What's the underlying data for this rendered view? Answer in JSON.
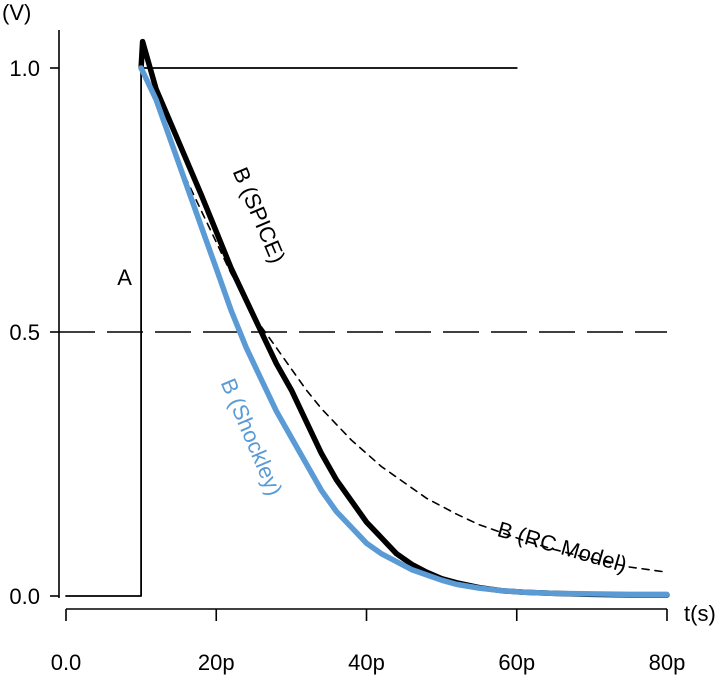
{
  "chart_data": {
    "type": "line",
    "title": "",
    "xlabel": "t(s)",
    "ylabel": "(V)",
    "xlim": [
      0,
      80
    ],
    "ylim": [
      0,
      1.0
    ],
    "x_unit_suffix": "p",
    "x_ticks": [
      {
        "value": 0,
        "label": "0.0"
      },
      {
        "value": 20,
        "label": "20p"
      },
      {
        "value": 40,
        "label": "40p"
      },
      {
        "value": 60,
        "label": "60p"
      },
      {
        "value": 80,
        "label": "80p"
      }
    ],
    "y_ticks": [
      {
        "value": 0.0,
        "label": "0.0"
      },
      {
        "value": 0.5,
        "label": "0.5"
      },
      {
        "value": 1.0,
        "label": "1.0"
      }
    ],
    "grid": false,
    "reference_lines": [
      {
        "y": 0.5,
        "style": "long-dash",
        "x_range": [
          0,
          80
        ]
      }
    ],
    "series": [
      {
        "name": "A",
        "color": "#000000",
        "style": "thin-solid",
        "x": [
          0,
          10,
          10,
          60
        ],
        "y": [
          0.0,
          0.0,
          1.0,
          1.0
        ]
      },
      {
        "name": "B (SPICE)",
        "color": "#000000",
        "style": "thick-solid",
        "x": [
          10,
          10.2,
          12,
          15,
          18,
          20,
          22,
          24,
          26,
          28,
          30,
          32,
          34,
          36,
          38,
          40,
          42,
          44,
          46,
          48,
          50,
          52,
          55,
          58,
          61,
          65,
          70,
          75,
          80
        ],
        "y": [
          1.0,
          1.05,
          0.96,
          0.86,
          0.76,
          0.69,
          0.62,
          0.56,
          0.5,
          0.44,
          0.39,
          0.33,
          0.27,
          0.22,
          0.18,
          0.14,
          0.11,
          0.08,
          0.06,
          0.045,
          0.033,
          0.025,
          0.016,
          0.01,
          0.007,
          0.005,
          0.003,
          0.002,
          0.002
        ]
      },
      {
        "name": "B (Shockley)",
        "color": "#5b9bd5",
        "style": "thick-solid",
        "x": [
          10,
          12,
          14,
          16,
          18,
          20,
          22,
          24,
          26,
          28,
          30,
          32,
          34,
          36,
          38,
          40,
          42,
          44,
          46,
          48,
          50,
          52,
          55,
          58,
          61,
          65,
          70,
          75,
          80
        ],
        "y": [
          1.0,
          0.94,
          0.86,
          0.78,
          0.7,
          0.62,
          0.54,
          0.47,
          0.41,
          0.35,
          0.3,
          0.25,
          0.2,
          0.16,
          0.13,
          0.1,
          0.08,
          0.065,
          0.05,
          0.04,
          0.03,
          0.022,
          0.015,
          0.01,
          0.007,
          0.005,
          0.004,
          0.003,
          0.003
        ]
      },
      {
        "name": "B (RC Model)",
        "color": "#000000",
        "style": "short-dash",
        "x": [
          10,
          12,
          14,
          16,
          18,
          20,
          22,
          24,
          26,
          28,
          30,
          32,
          34,
          36,
          38,
          40,
          42,
          44,
          46,
          48,
          50,
          52,
          55,
          58,
          61,
          65,
          70,
          75,
          80
        ],
        "y": [
          1.0,
          0.94,
          0.86,
          0.79,
          0.73,
          0.67,
          0.61,
          0.56,
          0.51,
          0.47,
          0.43,
          0.39,
          0.355,
          0.325,
          0.295,
          0.27,
          0.245,
          0.225,
          0.205,
          0.185,
          0.17,
          0.155,
          0.135,
          0.12,
          0.105,
          0.088,
          0.07,
          0.055,
          0.045
        ]
      }
    ],
    "annotations": [
      {
        "text": "A",
        "x": 7.8,
        "y": 0.6,
        "rotation": 0,
        "color": "#000000"
      },
      {
        "text": "B (SPICE)",
        "x": 25.5,
        "y": 0.72,
        "rotation": 67,
        "color": "#000000"
      },
      {
        "text": "B (Shockley)",
        "x": 24.5,
        "y": 0.3,
        "rotation": 67,
        "color": "#5b9bd5"
      },
      {
        "text": "B (RC Model)",
        "x": 66,
        "y": 0.09,
        "rotation": 16,
        "color": "#000000"
      }
    ]
  }
}
